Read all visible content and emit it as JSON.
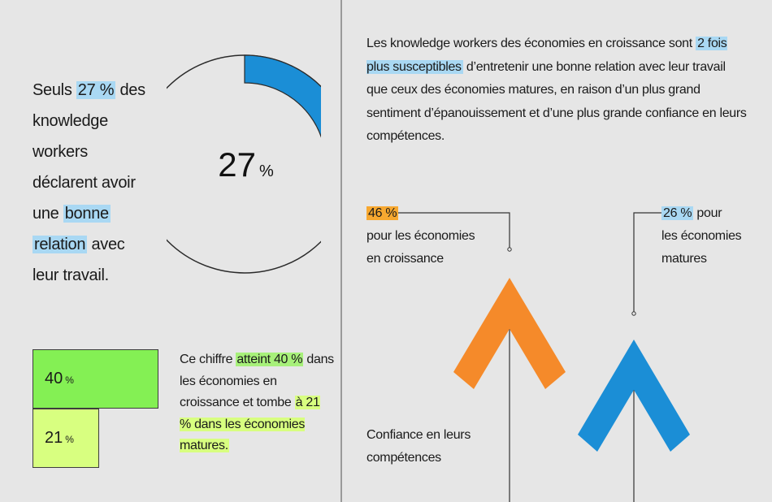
{
  "left_intro": {
    "seg1": "Seuls ",
    "pct": "27 %",
    "seg2": " des knowledge workers déclarent avoir une ",
    "hl1": "bonne",
    "seg3": " ",
    "hl2": "relation",
    "seg4": " avec leur travail."
  },
  "donut": {
    "label_value": "27",
    "label_unit": "%"
  },
  "bars_text": {
    "seg1": "Ce chiffre ",
    "hl1": "atteint 40 %",
    "seg2": " dans les économies en croissance et tombe ",
    "hl2": "à 21 % dans les économies matures."
  },
  "right_text": {
    "seg1": "Les knowledge workers des économies en croissance sont ",
    "hl": "2 fois plus susceptibles",
    "seg2": " d’entretenir une bonne relation avec leur travail que ceux des économies matures, en raison d’un plus grand sentiment d’épanouissement et d’une plus grande confiance en leurs compétences."
  },
  "arrows": {
    "growth_pct": "46 %",
    "growth_l1": "pour les économies",
    "growth_l2": "en croissance",
    "mature_pct": "26 %",
    "mature_tail": " pour",
    "mature_l1": "les économies",
    "mature_l2": "matures",
    "confidence_l1": "Confiance en leurs",
    "confidence_l2": "compétences"
  },
  "colors": {
    "blue": "#1b8ed6",
    "orange": "#f58a2a",
    "green": "#84f054",
    "lime": "#d8ff80",
    "highlight_blue": "#a9d8f3",
    "highlight_orange": "#f7a830"
  },
  "chart_data": [
    {
      "type": "pie",
      "title": "",
      "values": [
        27,
        73
      ],
      "center_label": "27 %"
    },
    {
      "type": "bar",
      "categories": [
        "économies en croissance",
        "économies matures"
      ],
      "values": [
        40,
        21
      ],
      "data_labels": [
        "40 %",
        "21 %"
      ]
    },
    {
      "type": "bar",
      "categories": [
        "économies en croissance",
        "économies matures"
      ],
      "values": [
        46,
        26
      ],
      "data_labels": [
        "46 %",
        "26 %"
      ],
      "ylabel": "Confiance en leurs compétences"
    }
  ]
}
